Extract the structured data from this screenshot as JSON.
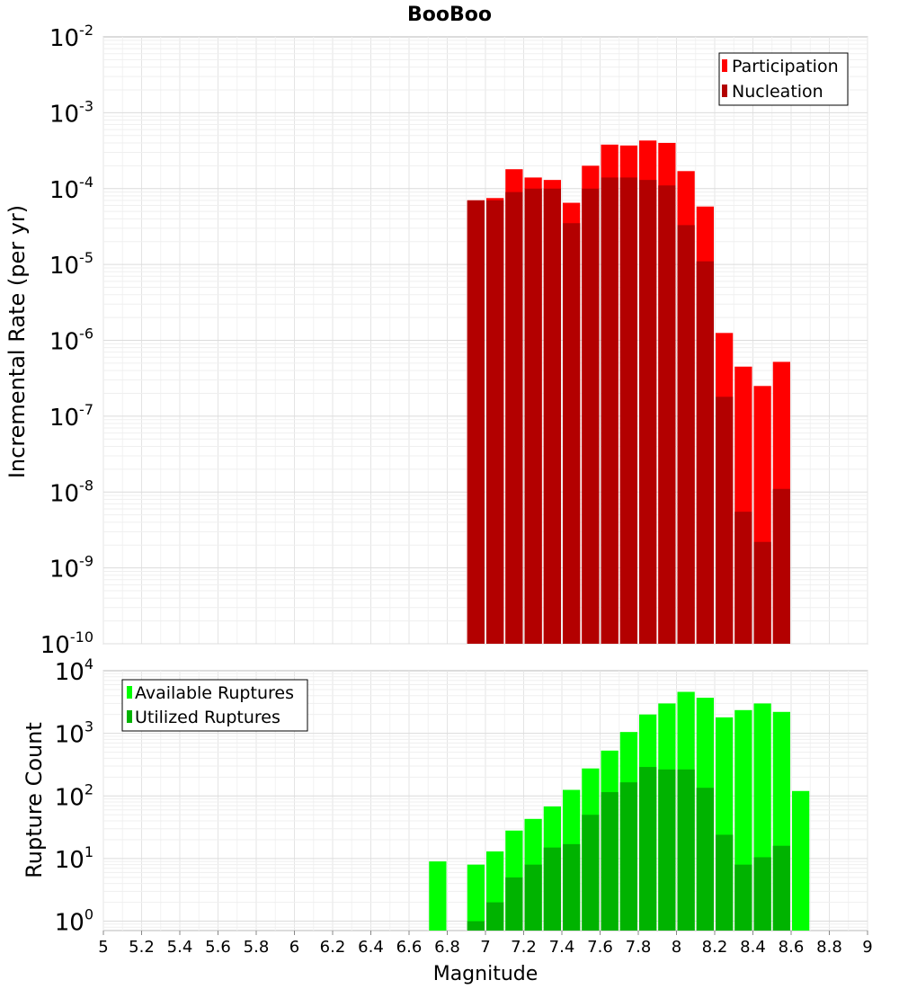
{
  "chart_data": {
    "title": "BooBoo",
    "xlabel": "Magnitude",
    "xlim": [
      5,
      9
    ],
    "xticks": [
      "5",
      "5.2",
      "5.4",
      "5.6",
      "5.8",
      "6",
      "6.2",
      "6.4",
      "6.6",
      "6.8",
      "7",
      "7.2",
      "7.4",
      "7.6",
      "7.8",
      "8",
      "8.2",
      "8.4",
      "8.6",
      "8.8",
      "9"
    ],
    "bin_width": 0.1,
    "panels": [
      {
        "type": "bar",
        "scale": "log",
        "ylabel": "Incremental Rate (per yr)",
        "ylim_exp": [
          -10,
          -2
        ],
        "ytick_exps": [
          "-10",
          "-9",
          "-8",
          "-7",
          "-6",
          "-5",
          "-4",
          "-3",
          "-2"
        ],
        "legend_position": "top-right",
        "x": [
          6.95,
          7.05,
          7.15,
          7.25,
          7.35,
          7.45,
          7.55,
          7.65,
          7.75,
          7.85,
          7.95,
          8.05,
          8.15,
          8.25,
          8.35,
          8.45,
          8.55
        ],
        "series": [
          {
            "name": "Participation",
            "color": "#ff0000",
            "values": [
              7e-05,
              7.5e-05,
              0.00018,
              0.00014,
              0.00013,
              6.5e-05,
              0.0002,
              0.00038,
              0.00037,
              0.00043,
              0.0004,
              0.00017,
              5.8e-05,
              1.25e-06,
              4.5e-07,
              2.5e-07,
              5.2e-07
            ]
          },
          {
            "name": "Nucleation",
            "color": "#b30000",
            "values": [
              7e-05,
              7e-05,
              9e-05,
              0.0001,
              0.0001,
              3.5e-05,
              0.0001,
              0.00014,
              0.00014,
              0.00013,
              0.00011,
              3.3e-05,
              1.1e-05,
              1.8e-07,
              5.5e-09,
              2.2e-09,
              1.1e-08
            ]
          }
        ]
      },
      {
        "type": "bar",
        "scale": "log",
        "ylabel": "Rupture Count",
        "ylim_exp": [
          -0.15,
          4
        ],
        "ytick_exps": [
          "0",
          "1",
          "2",
          "3",
          "4"
        ],
        "legend_position": "top-left",
        "x": [
          6.75,
          6.95,
          7.05,
          7.15,
          7.25,
          7.35,
          7.45,
          7.55,
          7.65,
          7.75,
          7.85,
          7.95,
          8.05,
          8.15,
          8.25,
          8.35,
          8.45,
          8.55,
          8.65
        ],
        "series": [
          {
            "name": "Available Ruptures",
            "color": "#00ff00",
            "values": [
              9,
              8,
              13,
              28,
              43,
              68,
              125,
              275,
              530,
              1050,
              2000,
              3000,
              4600,
              3700,
              1800,
              2350,
              3000,
              2200,
              120
            ]
          },
          {
            "name": "Utilized Ruptures",
            "color": "#00b300",
            "values": [
              0,
              1,
              2,
              5,
              8,
              15,
              17,
              50,
              115,
              165,
              290,
              265,
              265,
              135,
              24,
              8,
              10.5,
              16,
              0
            ]
          }
        ]
      }
    ]
  }
}
